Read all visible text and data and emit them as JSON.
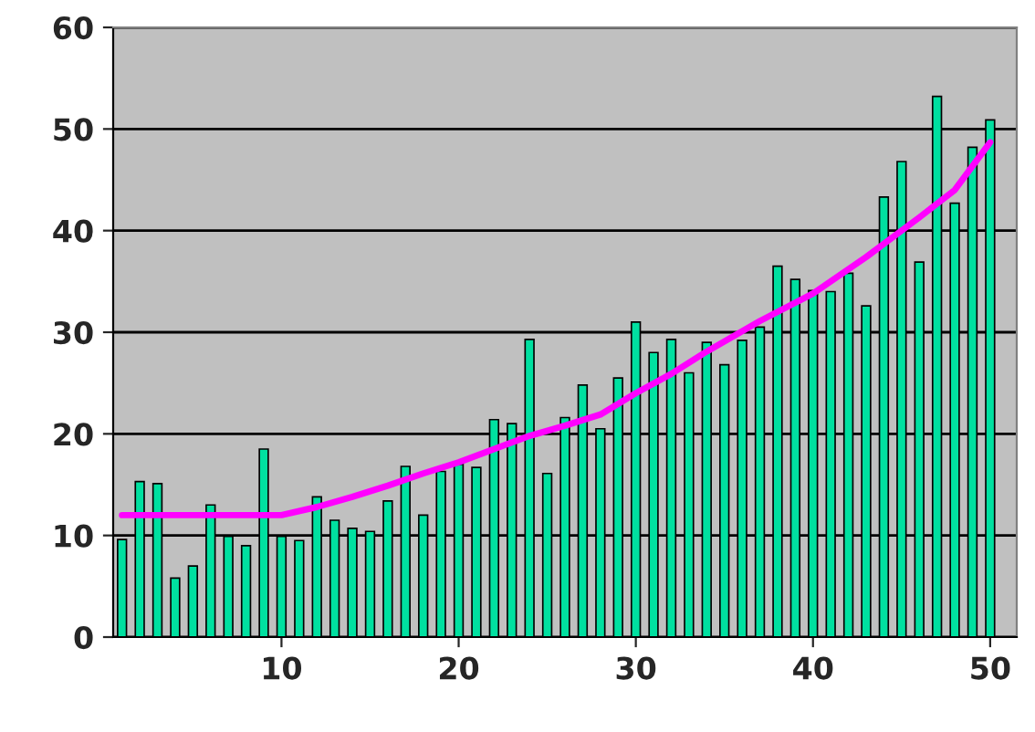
{
  "chart_data": {
    "type": "bar",
    "x": [
      1,
      2,
      3,
      4,
      5,
      6,
      7,
      8,
      9,
      10,
      11,
      12,
      13,
      14,
      15,
      16,
      17,
      18,
      19,
      20,
      21,
      22,
      23,
      24,
      25,
      26,
      27,
      28,
      29,
      30,
      31,
      32,
      33,
      34,
      35,
      36,
      37,
      38,
      39,
      40,
      41,
      42,
      43,
      44,
      45,
      46,
      47,
      48,
      49,
      50
    ],
    "series": [
      {
        "color": "#00e0a0",
        "values": [
          9.6,
          15.3,
          15.1,
          5.8,
          7.0,
          13.0,
          9.9,
          9.0,
          18.5,
          9.9,
          9.5,
          13.8,
          11.5,
          10.7,
          10.4,
          13.4,
          16.8,
          12.0,
          16.3,
          17.0,
          16.7,
          21.4,
          21.0,
          29.3,
          16.1,
          21.6,
          24.8,
          20.5,
          25.5,
          31.0,
          28.0,
          29.3,
          26.0,
          29.0,
          26.8,
          29.2,
          30.5,
          36.5,
          35.2,
          34.1,
          34.0,
          35.8,
          32.6,
          43.3,
          46.8,
          36.9,
          53.2,
          42.7,
          48.2,
          50.9
        ]
      },
      {
        "type": "line",
        "color": "#ff00ff",
        "x": [
          1,
          10,
          12,
          14,
          16,
          18,
          20,
          22,
          24,
          26,
          28,
          30,
          32,
          34,
          37,
          40,
          43,
          46,
          48,
          50
        ],
        "values": [
          12,
          12,
          12.8,
          13.8,
          14.9,
          16.1,
          17.2,
          18.5,
          19.8,
          20.8,
          21.9,
          24.0,
          25.9,
          28.1,
          31.1,
          33.8,
          37.4,
          41.3,
          44.0,
          48.7
        ]
      }
    ],
    "xlim": [
      0.5,
      51.5
    ],
    "xticks": [
      10,
      20,
      30,
      40,
      50
    ],
    "ylim": [
      0,
      60
    ],
    "yticks": [
      0,
      10,
      20,
      30,
      40,
      50,
      60
    ],
    "grid": "y",
    "legend": false
  }
}
